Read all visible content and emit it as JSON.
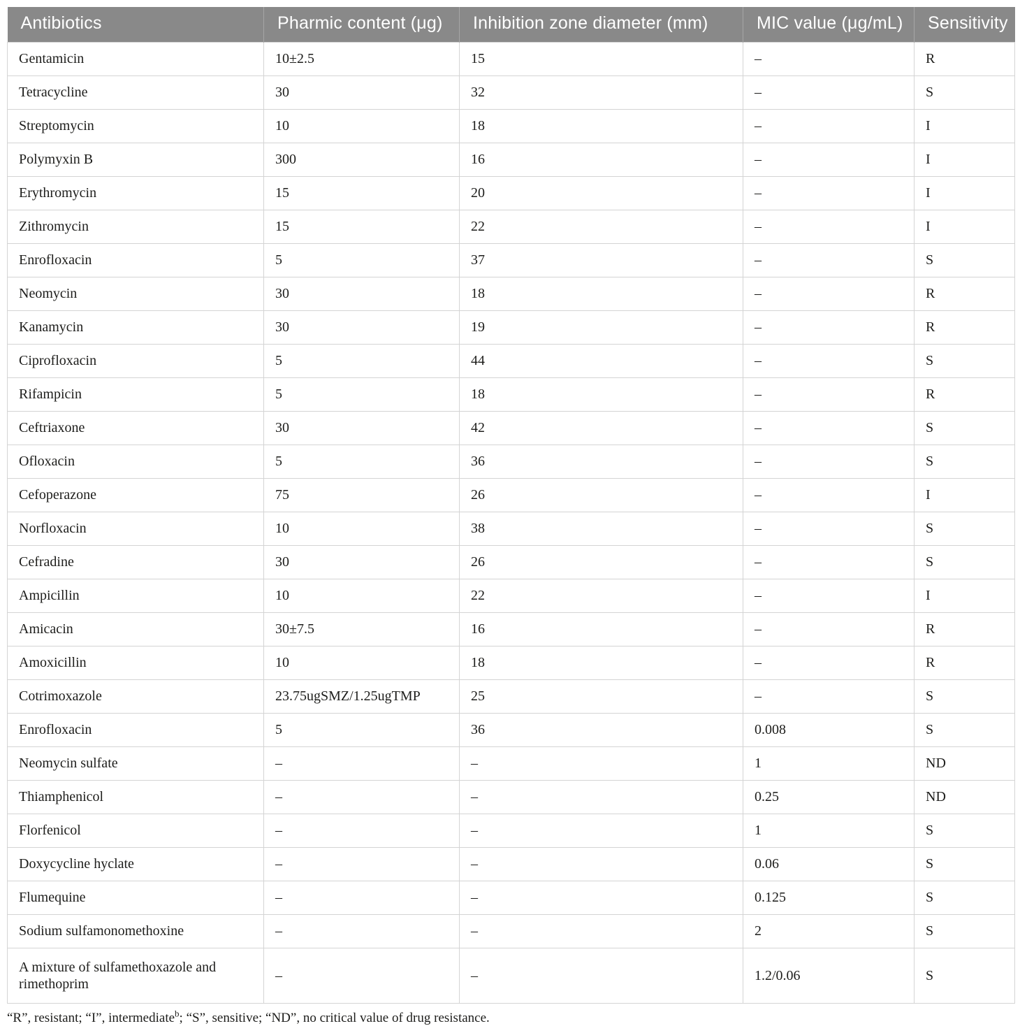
{
  "colors": {
    "header_bg": "#898989",
    "header_text": "#ffffff",
    "body_text": "#1d1d1b",
    "row_border": "#d4d4d4",
    "header_divider": "#a6a6a6"
  },
  "table": {
    "columns": [
      {
        "label": "Antibiotics",
        "slug": "antibiotics"
      },
      {
        "label": "Pharmic content (μg)",
        "slug": "pharmic-content"
      },
      {
        "label": "Inhibition zone diameter (mm)",
        "slug": "inhibition-zone-diameter"
      },
      {
        "label": "MIC value (μg/mL)",
        "slug": "mic-value"
      },
      {
        "label": "Sensitivity",
        "slug": "sensitivity"
      }
    ],
    "rows": [
      [
        "Gentamicin",
        "10±2.5",
        "15",
        "–",
        "R"
      ],
      [
        "Tetracycline",
        "30",
        "32",
        "–",
        "S"
      ],
      [
        "Streptomycin",
        "10",
        "18",
        "–",
        "I"
      ],
      [
        "Polymyxin B",
        "300",
        "16",
        "–",
        "I"
      ],
      [
        "Erythromycin",
        "15",
        "20",
        "–",
        "I"
      ],
      [
        "Zithromycin",
        "15",
        "22",
        "–",
        "I"
      ],
      [
        "Enrofloxacin",
        "5",
        "37",
        "–",
        "S"
      ],
      [
        "Neomycin",
        "30",
        "18",
        "–",
        "R"
      ],
      [
        "Kanamycin",
        "30",
        "19",
        "–",
        "R"
      ],
      [
        "Ciprofloxacin",
        "5",
        "44",
        "–",
        "S"
      ],
      [
        "Rifampicin",
        "5",
        "18",
        "–",
        "R"
      ],
      [
        "Ceftriaxone",
        "30",
        "42",
        "–",
        "S"
      ],
      [
        "Ofloxacin",
        "5",
        "36",
        "–",
        "S"
      ],
      [
        "Cefoperazone",
        "75",
        "26",
        "–",
        "I"
      ],
      [
        "Norfloxacin",
        "10",
        "38",
        "–",
        "S"
      ],
      [
        "Cefradine",
        "30",
        "26",
        "–",
        "S"
      ],
      [
        "Ampicillin",
        "10",
        "22",
        "–",
        "I"
      ],
      [
        "Amicacin",
        "30±7.5",
        "16",
        "–",
        "R"
      ],
      [
        "Amoxicillin",
        "10",
        "18",
        "–",
        "R"
      ],
      [
        "Cotrimoxazole",
        "23.75ugSMZ/1.25ugTMP",
        "25",
        "–",
        "S"
      ],
      [
        "Enrofloxacin",
        "5",
        "36",
        "0.008",
        "S"
      ],
      [
        "Neomycin sulfate",
        "–",
        "–",
        "1",
        "ND"
      ],
      [
        "Thiamphenicol",
        "–",
        "–",
        "0.25",
        "ND"
      ],
      [
        "Florfenicol",
        "–",
        "–",
        "1",
        "S"
      ],
      [
        "Doxycycline hyclate",
        "–",
        "–",
        "0.06",
        "S"
      ],
      [
        "Flumequine",
        "–",
        "–",
        "0.125",
        "S"
      ],
      [
        "Sodium sulfamonomethoxine",
        "–",
        "–",
        "2",
        "S"
      ],
      [
        "A mixture of sulfamethoxazole and rimethoprim",
        "–",
        "–",
        "1.2/0.06",
        "S"
      ]
    ]
  },
  "footnote": {
    "segments": [
      {
        "text": "“R”, resistant; “I”, intermediate",
        "sup": false
      },
      {
        "text": "b",
        "sup": true
      },
      {
        "text": "; “S”, sensitive; “ND”, no critical value of drug resistance.",
        "sup": false
      }
    ]
  }
}
